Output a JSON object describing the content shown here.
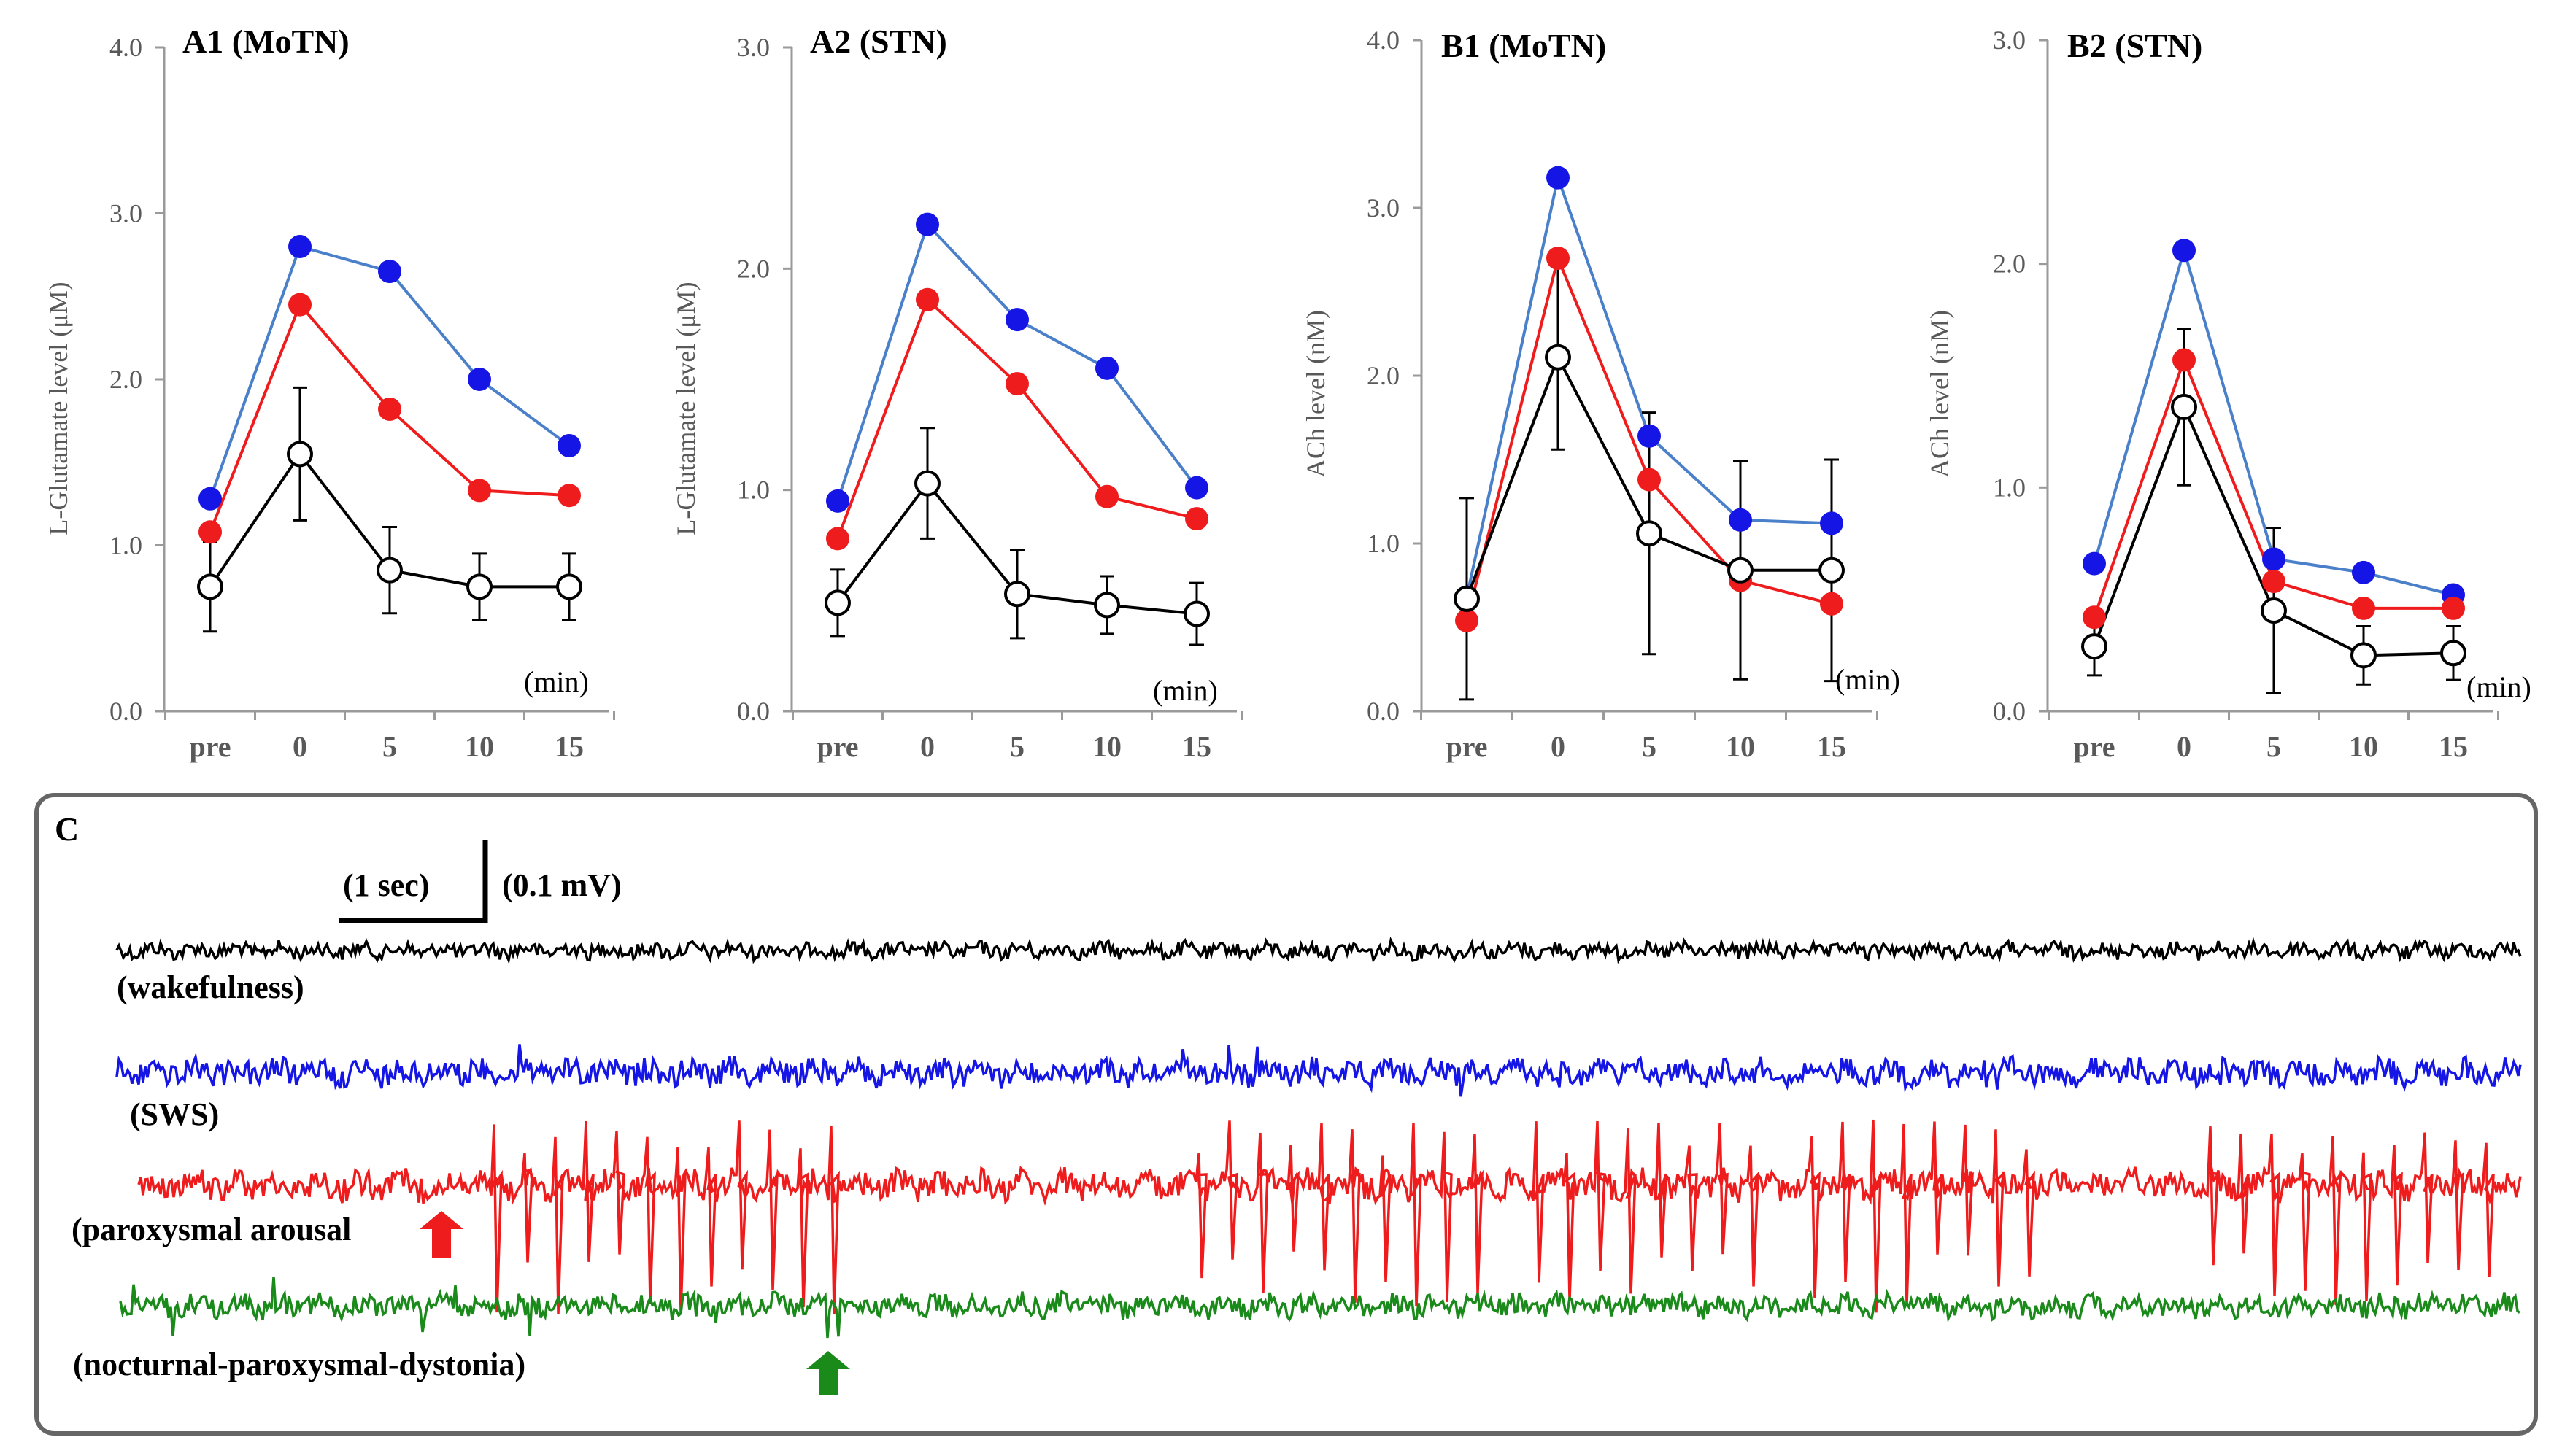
{
  "chart_data": [
    {
      "panel": "A1",
      "type": "line",
      "title": "A1 (MoTN)",
      "ylabel": "L-Glutamate level (μM)",
      "xlabel": "(min)",
      "categories": [
        "pre",
        "0",
        "5",
        "10",
        "15"
      ],
      "ylim": [
        0,
        4.0
      ],
      "yticks": [
        "0.0",
        "1.0",
        "2.0",
        "3.0",
        "4.0"
      ],
      "series": [
        {
          "name": "blue",
          "color": "#1515e6",
          "values": [
            1.28,
            2.8,
            2.65,
            2.0,
            1.6
          ]
        },
        {
          "name": "red",
          "color": "#ee1c1c",
          "values": [
            1.08,
            2.45,
            1.82,
            1.33,
            1.3
          ]
        },
        {
          "name": "open",
          "color": "#000000",
          "values": [
            0.75,
            1.55,
            0.85,
            0.75,
            0.75
          ],
          "err": [
            0.27,
            0.4,
            0.26,
            0.2,
            0.2
          ]
        }
      ]
    },
    {
      "panel": "A2",
      "type": "line",
      "title": "A2 (STN)",
      "ylabel": "L-Glutamate level (μM)",
      "xlabel": "(min)",
      "categories": [
        "pre",
        "0",
        "5",
        "10",
        "15"
      ],
      "ylim": [
        0,
        3.0
      ],
      "yticks": [
        "0.0",
        "1.0",
        "2.0",
        "3.0"
      ],
      "series": [
        {
          "name": "blue",
          "color": "#1515e6",
          "values": [
            0.95,
            2.2,
            1.77,
            1.55,
            1.01
          ]
        },
        {
          "name": "red",
          "color": "#ee1c1c",
          "values": [
            0.78,
            1.86,
            1.48,
            0.97,
            0.87
          ]
        },
        {
          "name": "open",
          "color": "#000000",
          "values": [
            0.49,
            1.03,
            0.53,
            0.48,
            0.44
          ],
          "err": [
            0.15,
            0.25,
            0.2,
            0.13,
            0.14
          ]
        }
      ]
    },
    {
      "panel": "B1",
      "type": "line",
      "title": "B1 (MoTN)",
      "ylabel": "ACh level (nM)",
      "xlabel": "(min)",
      "categories": [
        "pre",
        "0",
        "5",
        "10",
        "15"
      ],
      "ylim": [
        0,
        4.0
      ],
      "yticks": [
        "0.0",
        "1.0",
        "2.0",
        "3.0",
        "4.0"
      ],
      "series": [
        {
          "name": "blue",
          "color": "#1515e6",
          "values": [
            0.68,
            3.18,
            1.64,
            1.14,
            1.12
          ]
        },
        {
          "name": "red",
          "color": "#ee1c1c",
          "values": [
            0.54,
            2.7,
            1.38,
            0.78,
            0.64
          ]
        },
        {
          "name": "open",
          "color": "#000000",
          "values": [
            0.67,
            2.11,
            1.06,
            0.84,
            0.84
          ],
          "err": [
            0.6,
            0.55,
            0.72,
            0.65,
            0.66
          ]
        }
      ]
    },
    {
      "panel": "B2",
      "type": "line",
      "title": "B2 (STN)",
      "ylabel": "ACh level (nM)",
      "xlabel": "(min)",
      "categories": [
        "pre",
        "0",
        "5",
        "10",
        "15"
      ],
      "ylim": [
        0,
        3.0
      ],
      "yticks": [
        "0.0",
        "1.0",
        "2.0",
        "3.0"
      ],
      "series": [
        {
          "name": "blue",
          "color": "#1515e6",
          "values": [
            0.66,
            2.06,
            0.68,
            0.62,
            0.52
          ]
        },
        {
          "name": "red",
          "color": "#ee1c1c",
          "values": [
            0.42,
            1.57,
            0.58,
            0.46,
            0.46
          ]
        },
        {
          "name": "open",
          "color": "#000000",
          "values": [
            0.29,
            1.36,
            0.45,
            0.25,
            0.26
          ],
          "err": [
            0.13,
            0.35,
            0.37,
            0.13,
            0.12
          ]
        }
      ]
    }
  ],
  "panel_c": {
    "title": "C",
    "scale_time": "(1 sec)",
    "scale_voltage": "(0.1 mV)",
    "traces": [
      {
        "label": "(wakefulness)",
        "color": "#000000",
        "amplitude": "low",
        "spikes": false
      },
      {
        "label": "(SWS)",
        "color": "#1515e6",
        "amplitude": "medium",
        "spikes": false
      },
      {
        "label": "(paroxysmal  arousal",
        "color": "#ee1c1c",
        "amplitude": "high",
        "spikes": true,
        "arrow_color": "#ee1c1c"
      },
      {
        "label": "(nocturnal-paroxysmal-dystonia)",
        "color": "#1a8a1a",
        "amplitude": "medium",
        "spikes": false,
        "arrow_color": "#1a8a1a"
      }
    ]
  }
}
